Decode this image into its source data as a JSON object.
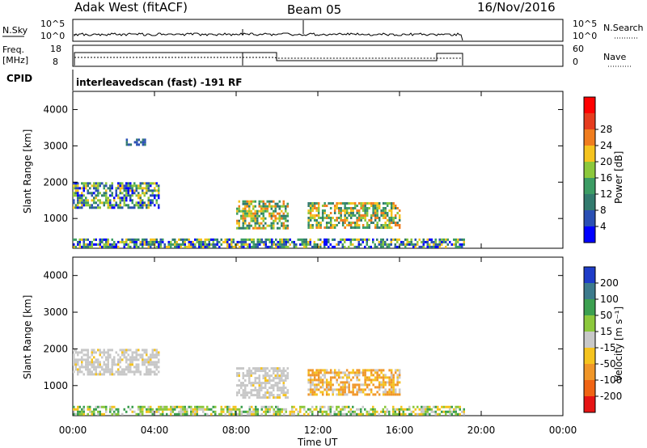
{
  "header": {
    "station": "Adak West (fitACF)",
    "beam": "Beam 05",
    "date": "16/Nov/2016"
  },
  "panels": {
    "noise": {
      "left_label": "N.Sky",
      "right_label": "N.Search",
      "left_ticks": [
        "10^5",
        "10^0"
      ],
      "right_ticks": [
        "10^5",
        "10^0"
      ]
    },
    "freq": {
      "left_label_1": "Freq.",
      "left_label_2": "[MHz]",
      "right_label": "Nave",
      "left_ticks": [
        "18",
        "8"
      ],
      "right_ticks": [
        "60",
        "0"
      ]
    },
    "cpid": {
      "label": "CPID",
      "text": "interleavedscan (fast) -191 RF"
    }
  },
  "chart_data": [
    {
      "type": "heatmap",
      "title": "Power",
      "ylabel": "Slant Range [km]",
      "xlabel": "Time UT",
      "x_ticks": [
        "00:00",
        "04:00",
        "08:00",
        "12:00",
        "16:00",
        "20:00",
        "00:00"
      ],
      "y_ticks": [
        1000,
        2000,
        3000,
        4000
      ],
      "xlim_hours": [
        0,
        24
      ],
      "ylim_km": [
        180,
        4500
      ],
      "colorbar_label": "Power [dB]",
      "colorbar_ticks": [
        4,
        8,
        12,
        16,
        20,
        24,
        28
      ],
      "colorbar_colors": [
        "#0000ff",
        "#2a4fb4",
        "#327a6e",
        "#3c9c64",
        "#8cc83c",
        "#f5c31e",
        "#f07d1e",
        "#e63c1e",
        "#ff0000"
      ],
      "regions": [
        {
          "t0": 0.0,
          "t1": 4.2,
          "r0": 1300,
          "r1": 2000,
          "level": "mixed"
        },
        {
          "t0": 2.5,
          "t1": 3.5,
          "r0": 3000,
          "r1": 3200,
          "level": "low"
        },
        {
          "t0": 8.0,
          "t1": 10.5,
          "r0": 700,
          "r1": 1500,
          "level": "high"
        },
        {
          "t0": 11.5,
          "t1": 16.0,
          "r0": 750,
          "r1": 1450,
          "level": "high"
        },
        {
          "t0": 0.0,
          "t1": 19.2,
          "r0": 200,
          "r1": 450,
          "level": "mixed"
        }
      ]
    },
    {
      "type": "heatmap",
      "title": "Velocity",
      "ylabel": "Slant Range [km]",
      "xlabel": "Time UT",
      "x_ticks": [
        "00:00",
        "04:00",
        "08:00",
        "12:00",
        "16:00",
        "20:00",
        "00:00"
      ],
      "y_ticks": [
        1000,
        2000,
        3000,
        4000
      ],
      "xlim_hours": [
        0,
        24
      ],
      "ylim_km": [
        180,
        4500
      ],
      "colorbar_label": "Velocity [m s⁻¹]",
      "colorbar_ticks": [
        200,
        100,
        50,
        15,
        -15,
        -50,
        -100,
        -200
      ],
      "colorbar_colors": [
        "#1e3cc8",
        "#3c7a8c",
        "#3ca050",
        "#8cc83c",
        "#c8c8c8",
        "#f5c31e",
        "#f09628",
        "#f06414",
        "#e61414"
      ],
      "regions": [
        {
          "t0": 0.0,
          "t1": 4.2,
          "r0": 1300,
          "r1": 2000,
          "level": "gray"
        },
        {
          "t0": 8.0,
          "t1": 10.5,
          "r0": 700,
          "r1": 1500,
          "level": "gray"
        },
        {
          "t0": 11.5,
          "t1": 16.0,
          "r0": 750,
          "r1": 1450,
          "level": "orange"
        },
        {
          "t0": 0.0,
          "t1": 19.2,
          "r0": 200,
          "r1": 450,
          "level": "mixed-low"
        }
      ]
    }
  ]
}
